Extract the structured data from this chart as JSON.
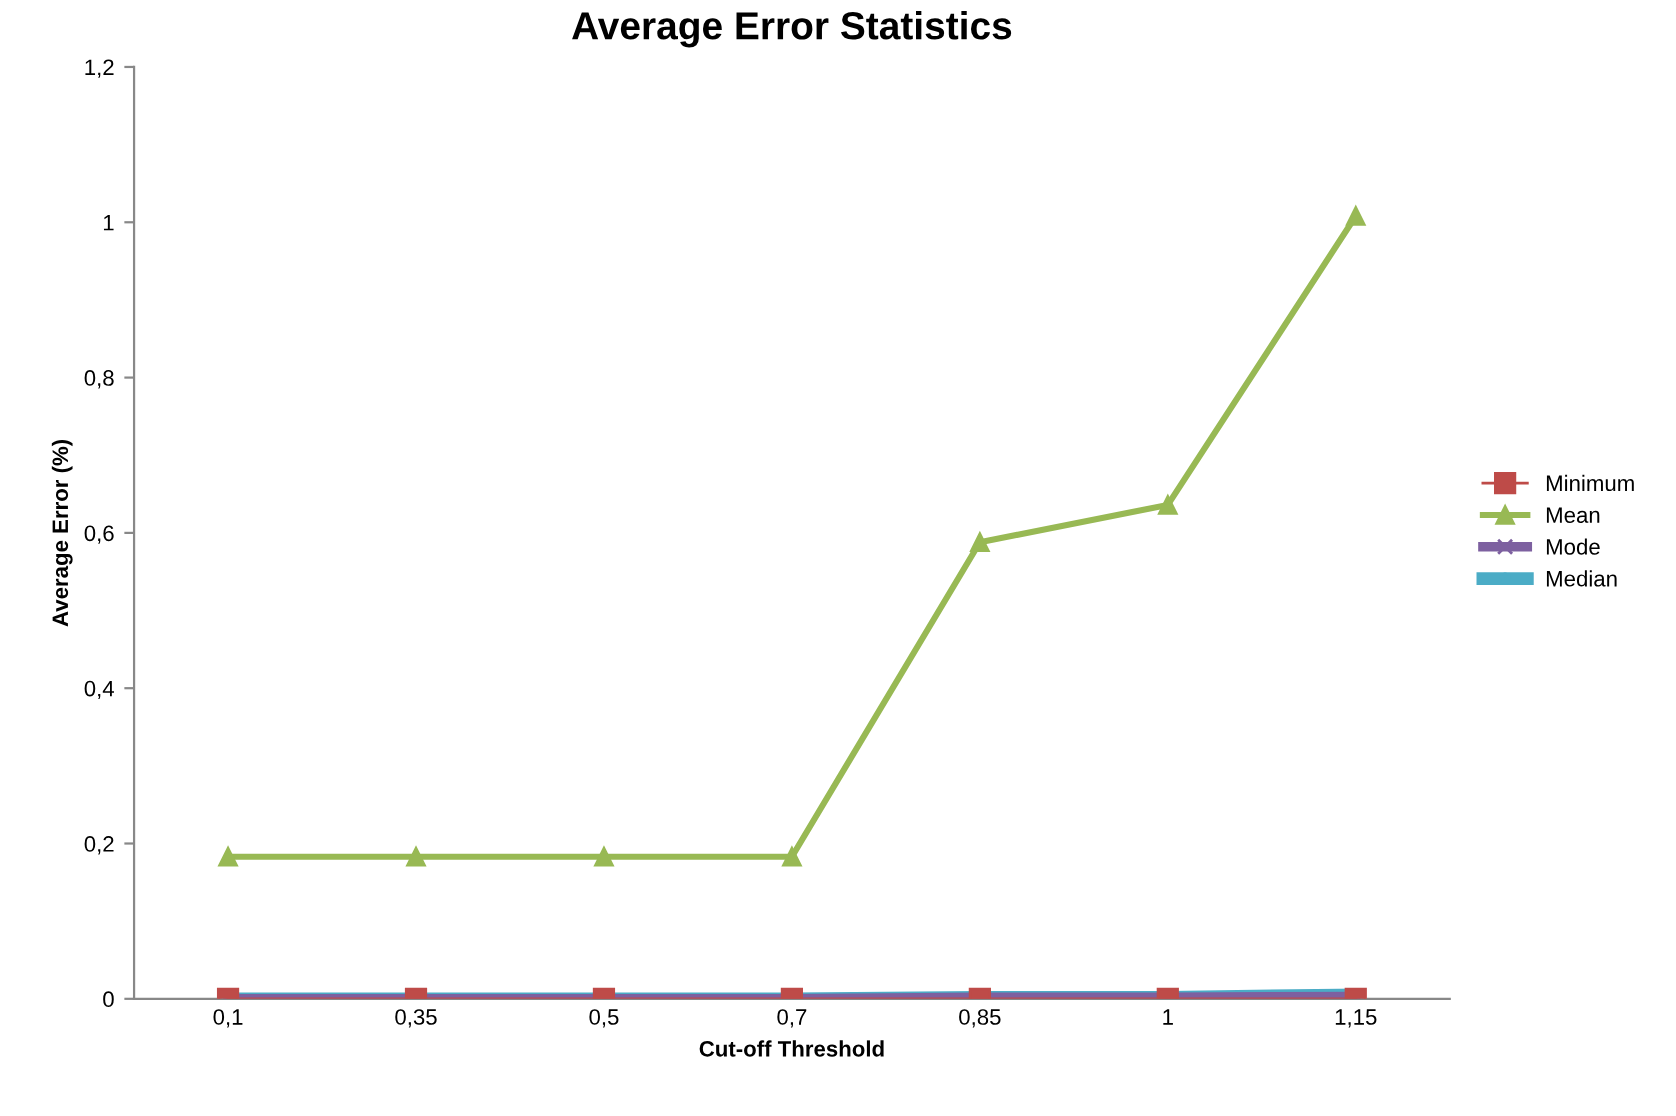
{
  "chart_data": {
    "type": "line",
    "title": "Average Error Statistics",
    "xlabel": "Cut-off Threshold",
    "ylabel": "Average Error (%)",
    "categories": [
      "0,1",
      "0,35",
      "0,5",
      "0,7",
      "0,85",
      "1",
      "1,15"
    ],
    "series": [
      {
        "name": "Minimum",
        "color": "#be4b48",
        "marker": "square",
        "values": [
          0,
          0,
          0,
          0,
          0,
          0,
          0
        ]
      },
      {
        "name": "Mean",
        "color": "#98b954",
        "marker": "triangle",
        "values": [
          0.183,
          0.183,
          0.183,
          0.183,
          0.588,
          0.636,
          1.008
        ]
      },
      {
        "name": "Mode",
        "color": "#7d60a0",
        "marker": "cross",
        "values": [
          0,
          0,
          0,
          0,
          0.002,
          0.002,
          0.003
        ]
      },
      {
        "name": "Median",
        "color": "#4bacc6",
        "marker": "star",
        "values": [
          0,
          0,
          0,
          0,
          0.002,
          0.002,
          0.005
        ]
      }
    ],
    "ylim": [
      0,
      1.2
    ],
    "yticks": [
      0,
      {
        "value": 0.2,
        "label": "0,2"
      },
      {
        "value": 0.4,
        "label": "0,4"
      },
      {
        "value": 0.6,
        "label": "0,6"
      },
      {
        "value": 0.8,
        "label": "0,8"
      },
      1,
      {
        "value": 1.2,
        "label": "1,2"
      }
    ],
    "grid": false,
    "legend": "right"
  }
}
